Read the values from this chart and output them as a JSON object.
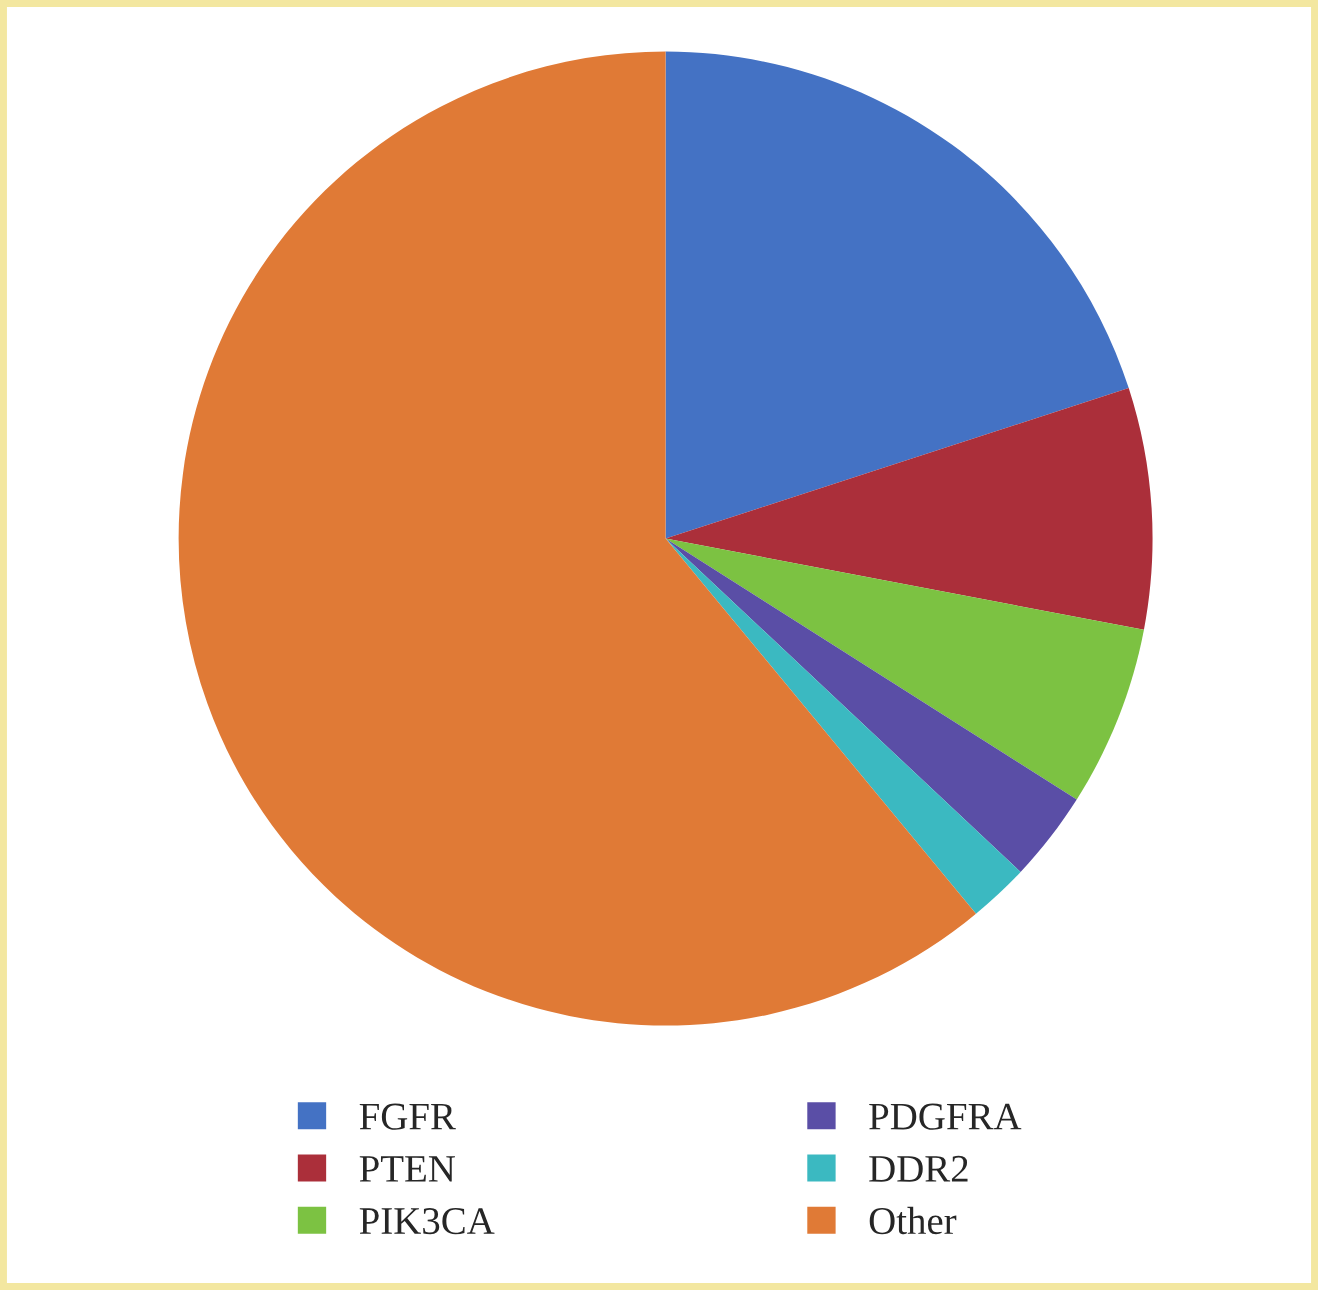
{
  "chart_data": {
    "type": "pie",
    "categories": [
      "FGFR",
      "PTEN",
      "PIK3CA",
      "PDGFRA",
      "DDR2",
      "Other"
    ],
    "values": [
      20,
      8,
      6,
      3,
      2,
      61
    ],
    "colors": [
      "#4472c4",
      "#ab2f3a",
      "#7cc242",
      "#5a4ea6",
      "#3bb9c1",
      "#e07a36"
    ],
    "legend": "bottom"
  }
}
